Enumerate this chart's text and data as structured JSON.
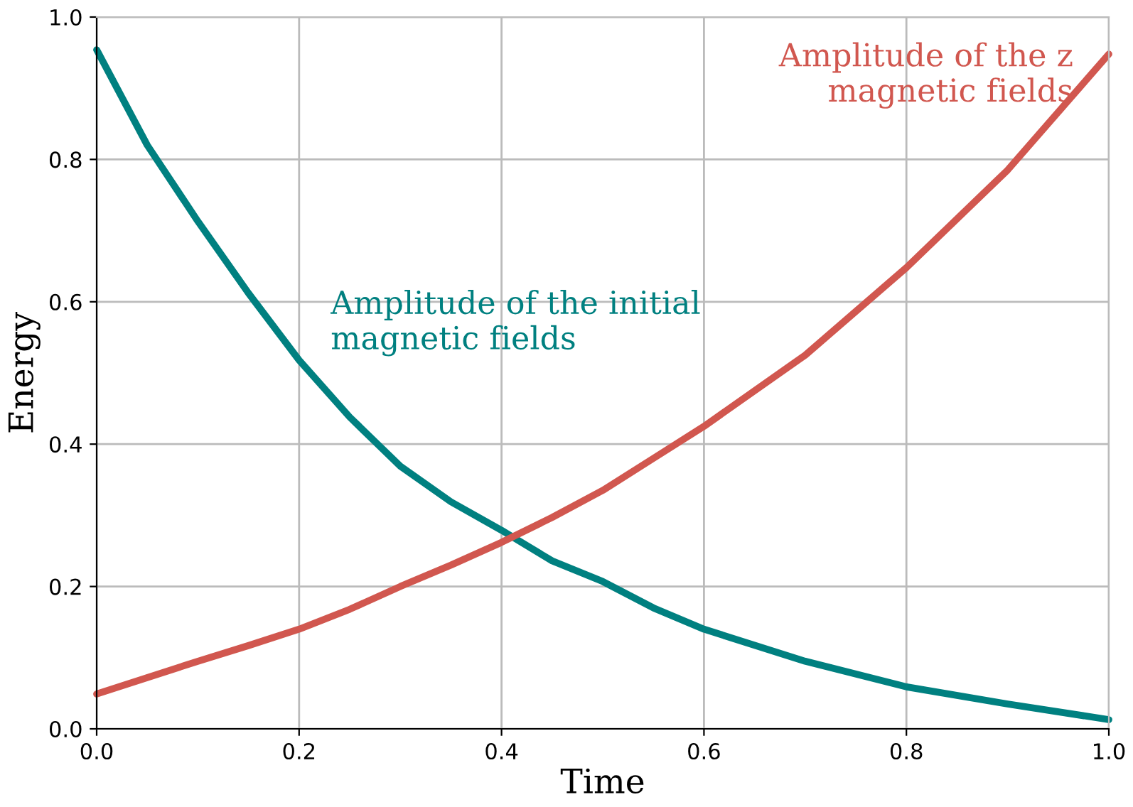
{
  "chart_data": {
    "type": "line",
    "xlabel": "Time",
    "ylabel": "Energy",
    "xlim": [
      0,
      1
    ],
    "ylim": [
      0,
      1
    ],
    "xticks": [
      {
        "value": 0,
        "label": "0.0"
      },
      0.2,
      0.4,
      0.6,
      0.8,
      {
        "value": 1,
        "label": "1.0"
      }
    ],
    "yticks": [
      {
        "value": 0,
        "label": "0.0"
      },
      0.2,
      0.4,
      0.6,
      0.8,
      {
        "value": 1,
        "label": "1.0"
      }
    ],
    "grid": true,
    "line_style": "solid",
    "marker": "none",
    "x": [
      0,
      0.05,
      0.1,
      0.15,
      0.2,
      0.25,
      0.3,
      0.35,
      0.4,
      0.45,
      0.5,
      0.55,
      0.6,
      0.7,
      0.8,
      0.9,
      1.0
    ],
    "series": [
      {
        "name": "Amplitude of the initial\nmagnetic fields",
        "color": "#008080",
        "values": [
          0.954,
          0.82,
          0.713,
          0.612,
          0.518,
          0.438,
          0.369,
          0.319,
          0.279,
          0.236,
          0.207,
          0.17,
          0.14,
          0.095,
          0.059,
          0.035,
          0.013
        ]
      },
      {
        "name": "Amplitude of the z\nmagnetic fields",
        "color": "#d1574f",
        "values": [
          0.049,
          0.072,
          0.095,
          0.117,
          0.14,
          0.168,
          0.2,
          0.23,
          0.262,
          0.297,
          0.335,
          0.38,
          0.425,
          0.525,
          0.648,
          0.785,
          0.948
        ]
      }
    ]
  }
}
